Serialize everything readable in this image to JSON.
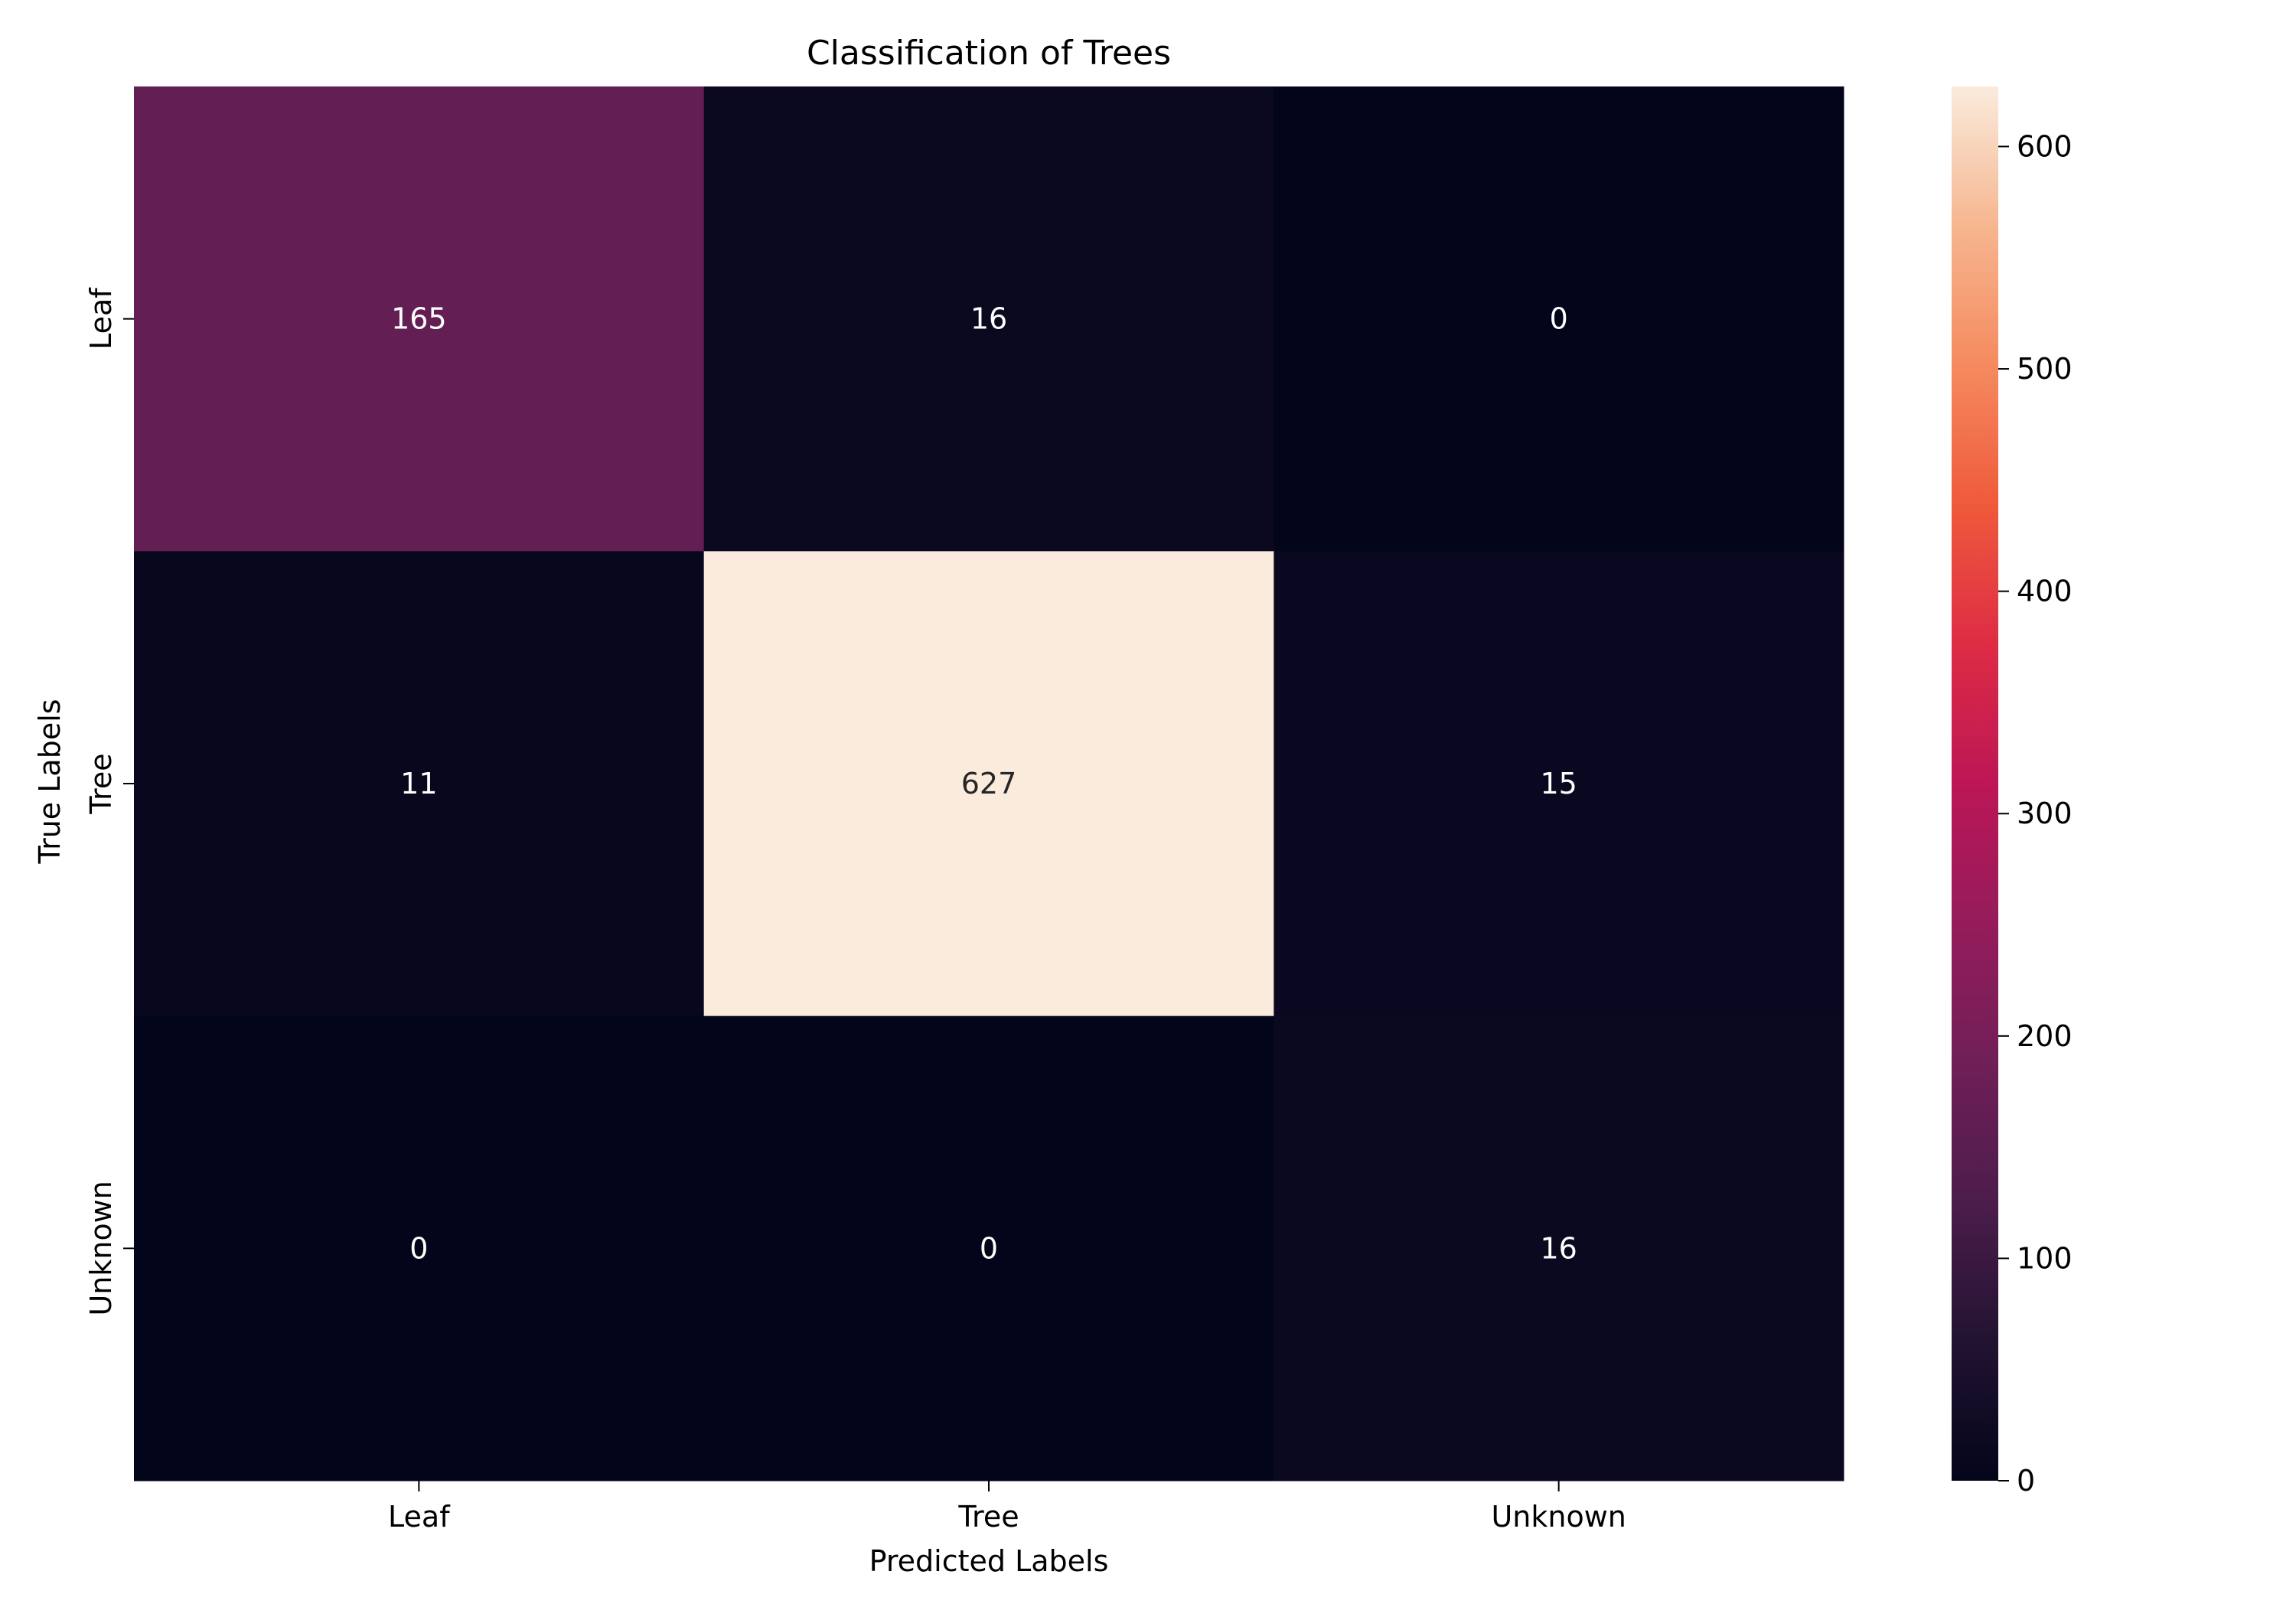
{
  "chart_data": {
    "type": "heatmap",
    "title": "Classification of Trees",
    "xlabel": "Predicted Labels",
    "ylabel": "True Labels",
    "x_categories": [
      "Leaf",
      "Tree",
      "Unknown"
    ],
    "y_categories": [
      "Leaf",
      "Tree",
      "Unknown"
    ],
    "values": [
      [
        165,
        16,
        0
      ],
      [
        11,
        627,
        15
      ],
      [
        0,
        0,
        16
      ]
    ],
    "colorbar": {
      "range": [
        0,
        627
      ],
      "ticks": [
        0,
        100,
        200,
        300,
        400,
        500,
        600
      ],
      "colormap": "rocket"
    },
    "annotation_colors": {
      "light": "#ffffff",
      "dark": "#262626"
    }
  }
}
